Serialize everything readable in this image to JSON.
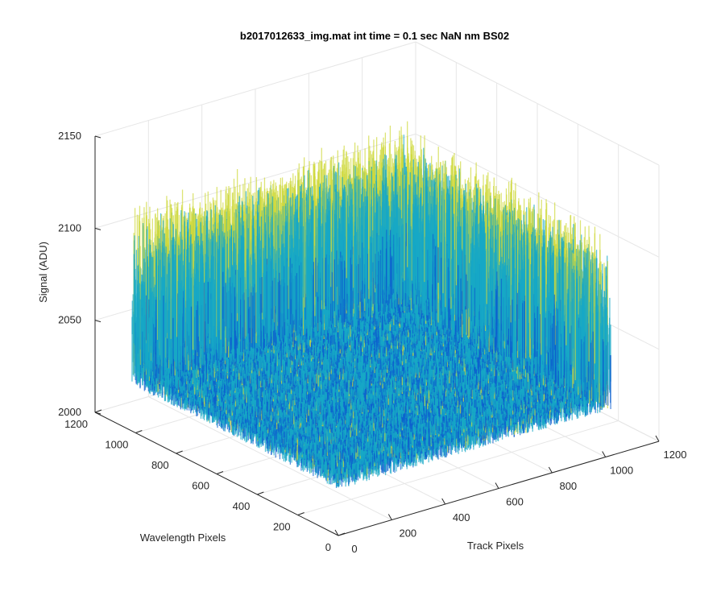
{
  "chart_data": {
    "type": "surface",
    "title": "b2017012633_img.mat int time = 0.1 sec  NaN nm BS02",
    "xlabel": "Track Pixels",
    "ylabel": "Wavelength Pixels",
    "zlabel": "Signal (ADU)",
    "xlim": [
      0,
      1200
    ],
    "ylim": [
      0,
      1200
    ],
    "zlim": [
      2000,
      2150
    ],
    "x_ticks": [
      "0",
      "200",
      "400",
      "600",
      "800",
      "1000",
      "1200"
    ],
    "y_ticks": [
      "0",
      "200",
      "400",
      "600",
      "800",
      "1000",
      "1200"
    ],
    "z_ticks": [
      "2000",
      "2050",
      "2100",
      "2150"
    ],
    "grid": true,
    "colormap": "parula",
    "surface_extent": {
      "x": [
        0,
        1024
      ],
      "y": [
        0,
        1024
      ]
    },
    "surface_stats": {
      "mean": 2062,
      "min": 2025,
      "max": 2130
    },
    "colors": {
      "low": "#0d5fcf",
      "mid": "#17a8c6",
      "high": "#cfd93a",
      "axis": "#262626",
      "grid": "#e6e6e6"
    }
  }
}
